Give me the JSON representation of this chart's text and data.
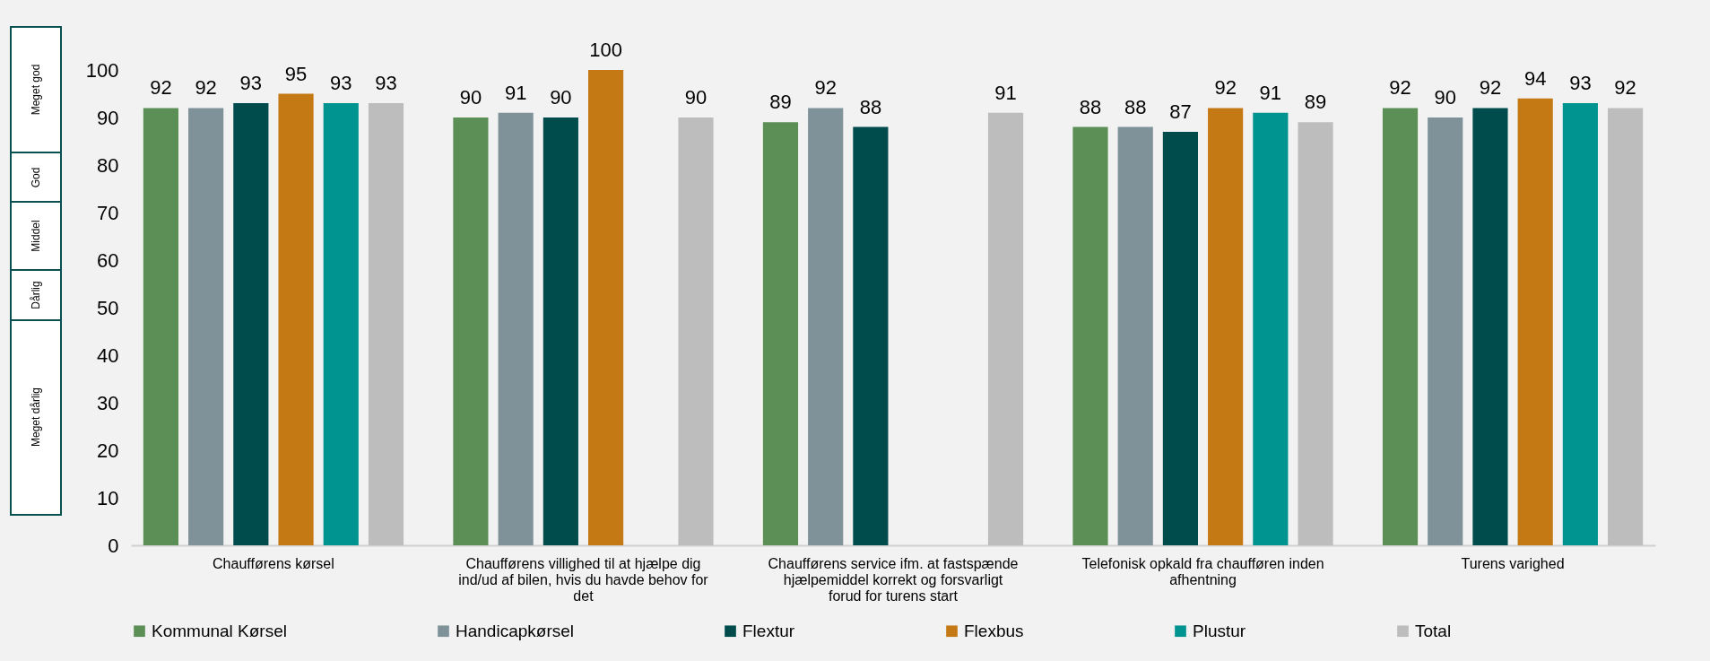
{
  "chart_data": {
    "type": "bar",
    "categories": [
      "Chaufførens kørsel",
      "Chaufførens villighed til at hjælpe dig ind/ud af bilen, hvis du havde behov for det",
      "Chaufførens service ifm. at fastspænde hjælpemiddel korrekt og forsvarligt forud for turens start",
      "Telefonisk opkald fra chaufføren inden afhentning",
      "Turens varighed"
    ],
    "series": [
      {
        "name": "Kommunal Kørsel",
        "color": "#5b8f55",
        "values": [
          92,
          90,
          89,
          88,
          92
        ]
      },
      {
        "name": "Handicapkørsel",
        "color": "#7f9199",
        "values": [
          92,
          91,
          92,
          88,
          90
        ]
      },
      {
        "name": "Flextur",
        "color": "#004b4b",
        "values": [
          93,
          90,
          88,
          87,
          92
        ]
      },
      {
        "name": "Flexbus",
        "color": "#c47914",
        "values": [
          95,
          100,
          null,
          92,
          94
        ]
      },
      {
        "name": "Plustur",
        "color": "#009490",
        "values": [
          93,
          null,
          null,
          91,
          93
        ]
      },
      {
        "name": "Total",
        "color": "#bdbdbd",
        "values": [
          93,
          90,
          91,
          89,
          92
        ]
      }
    ],
    "ylim": [
      0,
      100
    ],
    "yticks": [
      0,
      10,
      20,
      30,
      40,
      50,
      60,
      70,
      80,
      90,
      100
    ],
    "annotations": [
      "Meget god",
      "God",
      "Middel",
      "Dårlig",
      "Meget dårlig"
    ],
    "data_labels": true,
    "grid": false,
    "legend": "bottom"
  }
}
